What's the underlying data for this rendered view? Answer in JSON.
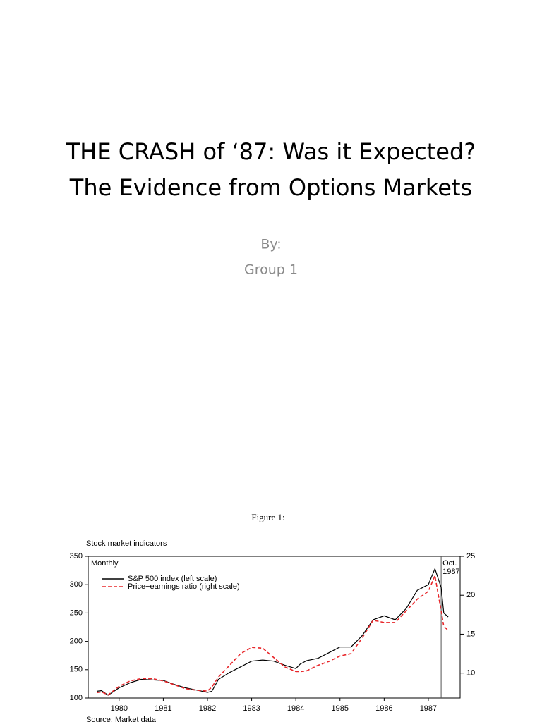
{
  "slide": {
    "title_lines": [
      "THE CRASH of ‘87: Was it Expected?",
      "The Evidence from Options Markets"
    ],
    "subtitle_lines": [
      "By:",
      "Group 1"
    ],
    "figure_caption": "Figure 1:"
  },
  "chart_data": {
    "type": "line",
    "title": "Stock market indicators",
    "subtitle": "Monthly",
    "source": "Source: Market data",
    "annotation": {
      "lines": [
        "Oct.",
        "1987"
      ],
      "x": 1987.79
    },
    "x": [
      1980.0,
      1980.1,
      1980.25,
      1980.5,
      1980.75,
      1981.0,
      1981.25,
      1981.5,
      1981.75,
      1982.0,
      1982.25,
      1982.5,
      1982.6,
      1982.75,
      1983.0,
      1983.25,
      1983.5,
      1983.75,
      1984.0,
      1984.25,
      1984.5,
      1984.6,
      1984.75,
      1985.0,
      1985.25,
      1985.5,
      1985.75,
      1986.0,
      1986.25,
      1986.5,
      1986.75,
      1987.0,
      1987.25,
      1987.5,
      1987.65,
      1987.79,
      1987.85,
      1987.95
    ],
    "series": [
      {
        "name": "S&P 500 index (left scale)",
        "color": "#000000",
        "dashed": false,
        "values": [
          112,
          113,
          105,
          118,
          127,
          133,
          132,
          131,
          124,
          118,
          114,
          110,
          112,
          133,
          145,
          155,
          165,
          167,
          165,
          158,
          152,
          160,
          166,
          170,
          180,
          190,
          190,
          210,
          238,
          245,
          238,
          258,
          290,
          300,
          328,
          295,
          250,
          243
        ]
      },
      {
        "name": "Price−earnings ratio (right scale)",
        "color": "#e8262a",
        "dashed": true,
        "axis": "y2",
        "values": [
          7.5,
          7.6,
          7.2,
          8.3,
          9.0,
          9.3,
          9.3,
          9.0,
          8.5,
          8.0,
          7.8,
          7.7,
          8.2,
          9.5,
          11,
          12.5,
          13.3,
          13.2,
          12,
          10.8,
          10.2,
          10.2,
          10.3,
          11,
          11.5,
          12.2,
          12.5,
          14.5,
          16.8,
          16.5,
          16.5,
          18,
          19.5,
          20.5,
          22.5,
          18,
          16,
          15.5
        ]
      }
    ],
    "xlim": [
      1979.8,
      1988.22
    ],
    "xticks": [
      {
        "value": 1980.5,
        "label": "1980"
      },
      {
        "value": 1981.5,
        "label": "1981"
      },
      {
        "value": 1982.5,
        "label": "1982"
      },
      {
        "value": 1983.5,
        "label": "1983"
      },
      {
        "value": 1984.5,
        "label": "1984"
      },
      {
        "value": 1985.5,
        "label": "1985"
      },
      {
        "value": 1986.5,
        "label": "1986"
      },
      {
        "value": 1987.5,
        "label": "1987"
      }
    ],
    "ylim": [
      100,
      350
    ],
    "yticks": [
      100,
      150,
      200,
      250,
      300,
      350
    ],
    "y2lim": [
      6.8,
      25
    ],
    "y2ticks": [
      10,
      15,
      20,
      25
    ]
  }
}
